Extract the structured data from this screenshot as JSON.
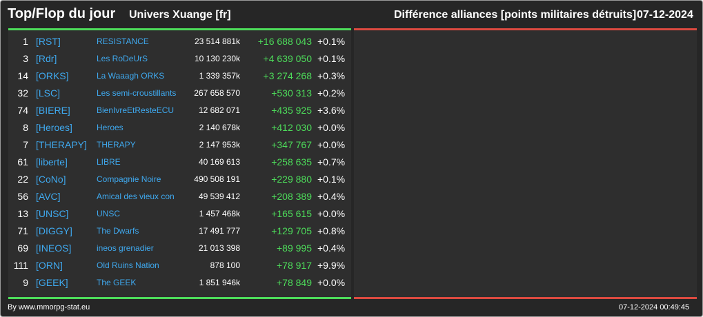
{
  "header": {
    "title": "Top/Flop du jour",
    "universe": "Univers Xuange [fr]",
    "difference_title": "Différence alliances [points militaires détruits]",
    "date": "07-12-2024"
  },
  "colors": {
    "background": "#262626",
    "accent_green": "#4ddc5a",
    "accent_red": "#dc4a40",
    "link_blue": "#3fa9ef"
  },
  "top": [
    {
      "rank": "1",
      "tag": "[RST]",
      "name": "RESISTANCE",
      "points": "23 514 881k",
      "delta": "+16 688 043",
      "pct": "+0.1%"
    },
    {
      "rank": "3",
      "tag": "[Rdr]",
      "name": "Les RoDeUrS",
      "points": "10 130 230k",
      "delta": "+4 639 050",
      "pct": "+0.1%"
    },
    {
      "rank": "14",
      "tag": "[ORKS]",
      "name": "La Waaagh ORKS",
      "points": "1 339 357k",
      "delta": "+3 274 268",
      "pct": "+0.3%"
    },
    {
      "rank": "32",
      "tag": "[LSC]",
      "name": "Les semi-croustillants",
      "points": "267 658 570",
      "delta": "+530 313",
      "pct": "+0.2%"
    },
    {
      "rank": "74",
      "tag": "[BIERE]",
      "name": "BienIvreEtResteECU",
      "points": "12 682 071",
      "delta": "+435 925",
      "pct": "+3.6%"
    },
    {
      "rank": "8",
      "tag": "[Heroes]",
      "name": "Heroes",
      "points": "2 140 678k",
      "delta": "+412 030",
      "pct": "+0.0%"
    },
    {
      "rank": "7",
      "tag": "[THERAPY]",
      "name": "THERAPY",
      "points": "2 147 953k",
      "delta": "+347 767",
      "pct": "+0.0%"
    },
    {
      "rank": "61",
      "tag": "[liberte]",
      "name": "LIBRE",
      "points": "40 169 613",
      "delta": "+258 635",
      "pct": "+0.7%"
    },
    {
      "rank": "22",
      "tag": "[CoNo]",
      "name": "Compagnie Noire",
      "points": "490 508 191",
      "delta": "+229 880",
      "pct": "+0.1%"
    },
    {
      "rank": "56",
      "tag": "[AVC]",
      "name": "Amical des vieux con",
      "points": "49 539 412",
      "delta": "+208 389",
      "pct": "+0.4%"
    },
    {
      "rank": "13",
      "tag": "[UNSC]",
      "name": "UNSC",
      "points": "1 457 468k",
      "delta": "+165 615",
      "pct": "+0.0%"
    },
    {
      "rank": "71",
      "tag": "[DIGGY]",
      "name": "The Dwarfs",
      "points": "17 491 777",
      "delta": "+129 705",
      "pct": "+0.8%"
    },
    {
      "rank": "69",
      "tag": "[INEOS]",
      "name": "ineos grenadier",
      "points": "21 013 398",
      "delta": "+89 995",
      "pct": "+0.4%"
    },
    {
      "rank": "111",
      "tag": "[ORN]",
      "name": "Old Ruins Nation",
      "points": "878 100",
      "delta": "+78 917",
      "pct": "+9.9%"
    },
    {
      "rank": "9",
      "tag": "[GEEK]",
      "name": "The GEEK",
      "points": "1 851 946k",
      "delta": "+78 849",
      "pct": "+0.0%"
    }
  ],
  "footer": {
    "source": "By www.mmorpg-stat.eu",
    "timestamp": "07-12-2024 00:49:45"
  }
}
